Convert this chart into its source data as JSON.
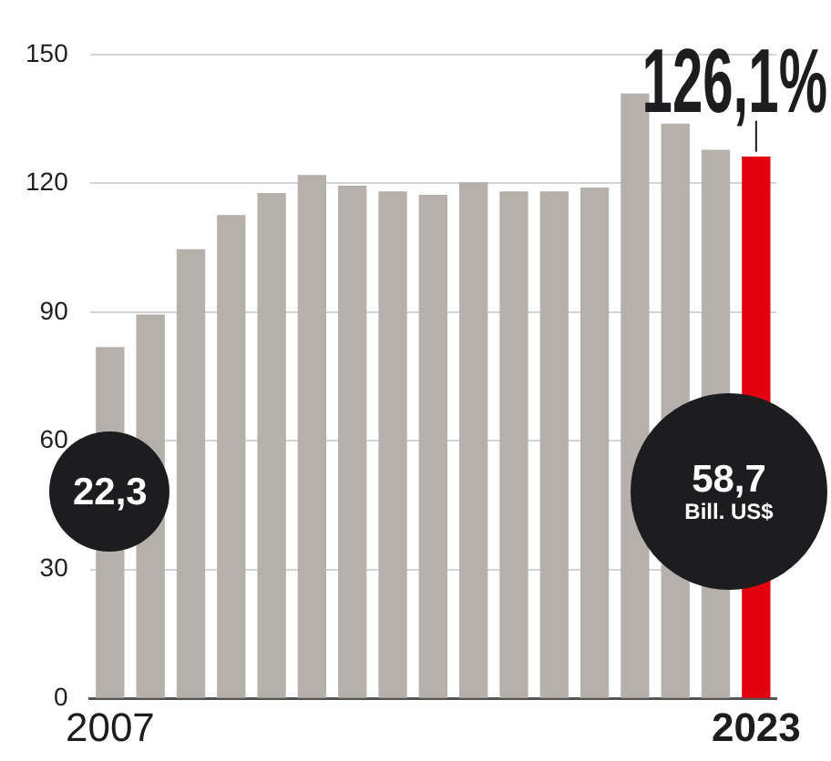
{
  "chart_data": {
    "type": "bar",
    "categories": [
      "2007",
      null,
      null,
      null,
      null,
      null,
      null,
      null,
      null,
      null,
      null,
      null,
      null,
      null,
      null,
      null,
      "2023"
    ],
    "values": [
      81.7,
      89.3,
      104.5,
      112.5,
      117.6,
      121.8,
      119.3,
      118.0,
      117.2,
      120.1,
      118.0,
      118.0,
      118.9,
      140.8,
      133.8,
      127.7,
      126.1
    ],
    "colors": [
      "#b5b0aa",
      "#b5b0aa",
      "#b5b0aa",
      "#b5b0aa",
      "#b5b0aa",
      "#b5b0aa",
      "#b5b0aa",
      "#b5b0aa",
      "#b5b0aa",
      "#b5b0aa",
      "#b5b0aa",
      "#b5b0aa",
      "#b5b0aa",
      "#b5b0aa",
      "#b5b0aa",
      "#b5b0aa",
      "#e3000f"
    ],
    "value_labels": [
      null,
      null,
      null,
      null,
      null,
      null,
      null,
      null,
      null,
      null,
      null,
      null,
      null,
      null,
      null,
      null,
      "126,1%"
    ],
    "ylim": [
      0,
      150
    ],
    "yticks": [
      0,
      30,
      60,
      90,
      120,
      150
    ],
    "grid": "y",
    "legend": false,
    "annotations": [
      "22,3",
      "58,7 Bill. US$"
    ]
  }
}
